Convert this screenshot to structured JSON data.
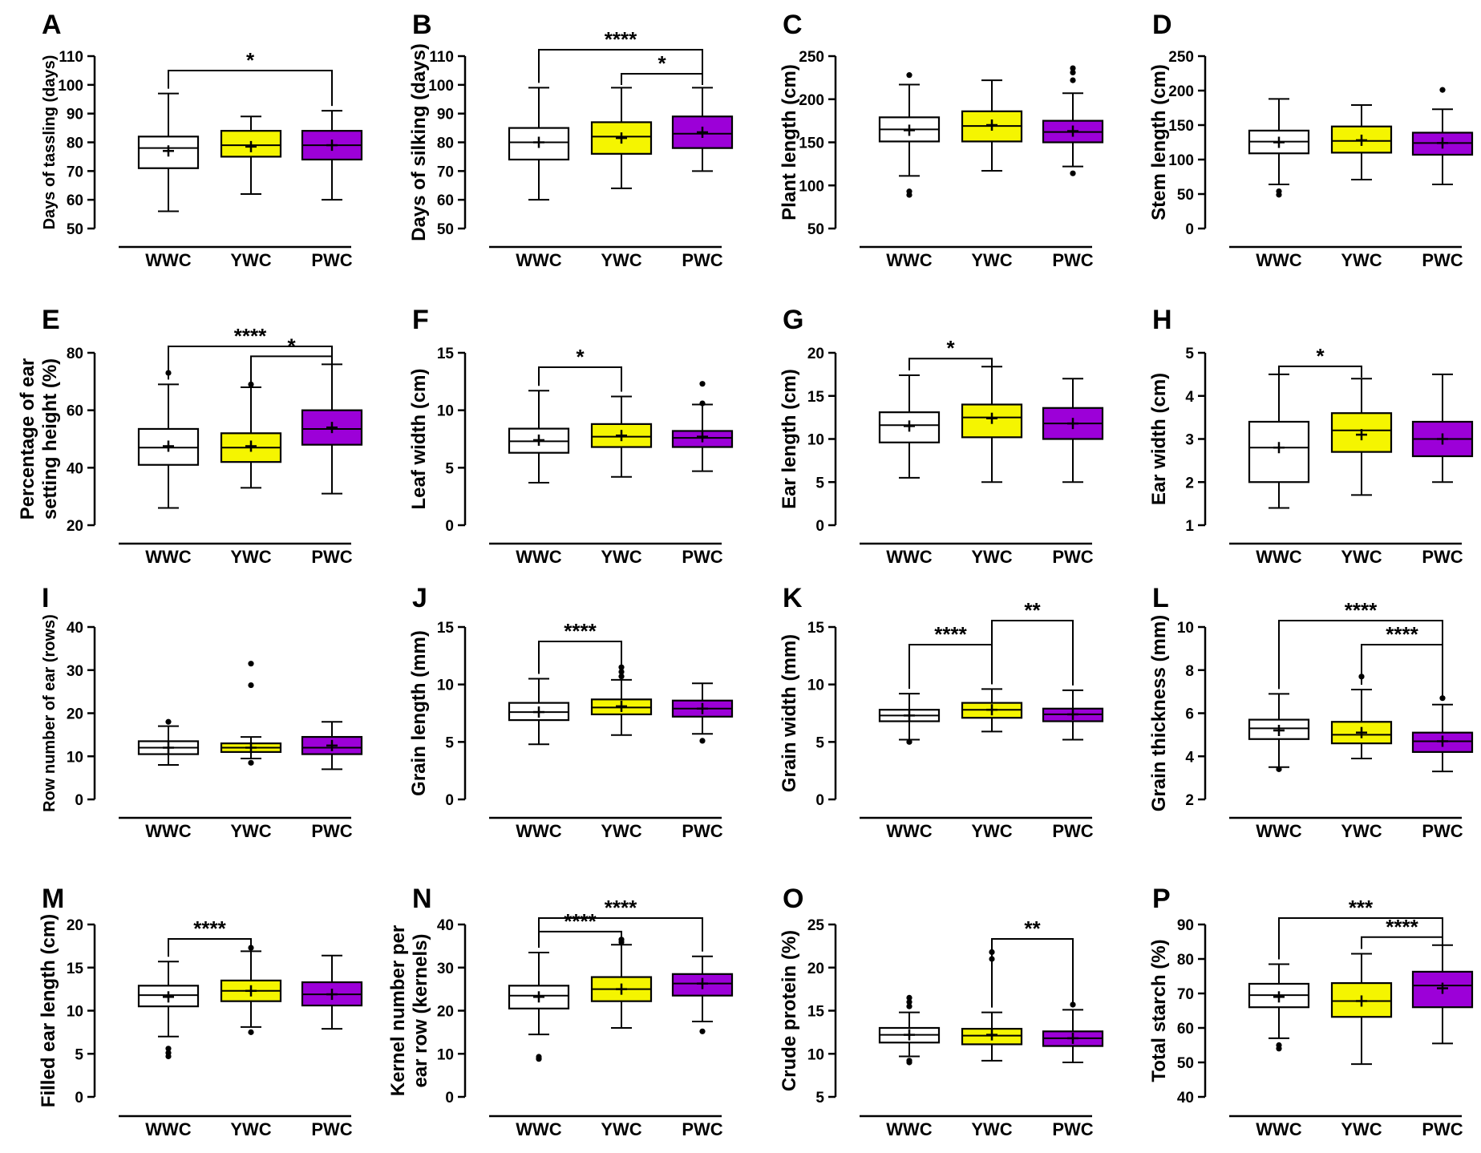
{
  "figure": {
    "colors": {
      "WWC": "#ffffff",
      "YWC": "#f5f500",
      "PWC": "#9c00d8"
    },
    "categories": [
      "WWC",
      "YWC",
      "PWC"
    ]
  },
  "chart_data": [
    {
      "type": "box",
      "panel": "A",
      "ylabel": [
        "Days of tassling (days)"
      ],
      "ylim": [
        50,
        110
      ],
      "ticks": [
        50,
        60,
        70,
        80,
        90,
        100,
        110
      ],
      "categories": [
        "WWC",
        "YWC",
        "PWC"
      ],
      "boxes": [
        {
          "min": 56,
          "q1": 71,
          "median": 78,
          "q3": 82,
          "max": 97,
          "mean": 77,
          "outliers": []
        },
        {
          "min": 62,
          "q1": 75,
          "median": 79,
          "q3": 84,
          "max": 89,
          "mean": 78.5,
          "outliers": []
        },
        {
          "min": 60,
          "q1": 74,
          "median": 79,
          "q3": 84,
          "max": 91,
          "mean": 79,
          "outliers": []
        }
      ],
      "significance": [
        {
          "from": 0,
          "to": 2,
          "label": "*"
        }
      ]
    },
    {
      "type": "box",
      "panel": "B",
      "ylabel": [
        "Days of silking (days)"
      ],
      "ylim": [
        50,
        110
      ],
      "ticks": [
        50,
        60,
        70,
        80,
        90,
        100,
        110
      ],
      "categories": [
        "WWC",
        "YWC",
        "PWC"
      ],
      "boxes": [
        {
          "min": 60,
          "q1": 74,
          "median": 80,
          "q3": 85,
          "max": 99,
          "mean": 80,
          "outliers": []
        },
        {
          "min": 64,
          "q1": 76,
          "median": 82,
          "q3": 87,
          "max": 99,
          "mean": 81.5,
          "outliers": []
        },
        {
          "min": 70,
          "q1": 78,
          "median": 83,
          "q3": 89,
          "max": 99,
          "mean": 83.5,
          "outliers": []
        }
      ],
      "significance": [
        {
          "from": 0,
          "to": 2,
          "label": "****"
        },
        {
          "from": 1,
          "to": 2,
          "label": "*"
        }
      ]
    },
    {
      "type": "box",
      "panel": "C",
      "ylabel": [
        "Plant length (cm)"
      ],
      "ylim": [
        50,
        250
      ],
      "ticks": [
        50,
        100,
        150,
        200,
        250
      ],
      "categories": [
        "WWC",
        "YWC",
        "PWC"
      ],
      "boxes": [
        {
          "min": 111,
          "q1": 151,
          "median": 165,
          "q3": 179,
          "max": 217,
          "mean": 164,
          "outliers": [
            228,
            93,
            89
          ]
        },
        {
          "min": 117,
          "q1": 151,
          "median": 169,
          "q3": 186,
          "max": 222,
          "mean": 170,
          "outliers": []
        },
        {
          "min": 122,
          "q1": 150,
          "median": 162,
          "q3": 175,
          "max": 207,
          "mean": 163,
          "outliers": [
            236,
            231,
            222,
            114
          ]
        }
      ],
      "significance": []
    },
    {
      "type": "box",
      "panel": "D",
      "ylabel": [
        "Stem length (cm)"
      ],
      "ylim": [
        0,
        250
      ],
      "ticks": [
        0,
        50,
        100,
        150,
        200,
        250
      ],
      "categories": [
        "WWC",
        "YWC",
        "PWC"
      ],
      "boxes": [
        {
          "min": 64,
          "q1": 109,
          "median": 126,
          "q3": 142,
          "max": 188,
          "mean": 125,
          "outliers": [
            54,
            49
          ]
        },
        {
          "min": 71,
          "q1": 110,
          "median": 127,
          "q3": 148,
          "max": 179,
          "mean": 128,
          "outliers": []
        },
        {
          "min": 64,
          "q1": 107,
          "median": 124,
          "q3": 139,
          "max": 173,
          "mean": 124,
          "outliers": [
            201
          ]
        }
      ],
      "significance": []
    },
    {
      "type": "box",
      "panel": "E",
      "ylabel": [
        "Percentage of ear",
        "setting height (%)"
      ],
      "ylim": [
        20,
        80
      ],
      "ticks": [
        20,
        40,
        60,
        80
      ],
      "categories": [
        "WWC",
        "YWC",
        "PWC"
      ],
      "boxes": [
        {
          "min": 26,
          "q1": 41,
          "median": 47,
          "q3": 53.5,
          "max": 69,
          "mean": 47.5,
          "outliers": [
            73
          ]
        },
        {
          "min": 33,
          "q1": 42,
          "median": 47,
          "q3": 52,
          "max": 68,
          "mean": 47.5,
          "outliers": [
            69
          ]
        },
        {
          "min": 31,
          "q1": 48,
          "median": 53.5,
          "q3": 60,
          "max": 76,
          "mean": 54,
          "outliers": []
        }
      ],
      "significance": [
        {
          "from": 0,
          "to": 2,
          "label": "****"
        },
        {
          "from": 1,
          "to": 2,
          "label": "*"
        }
      ]
    },
    {
      "type": "box",
      "panel": "F",
      "ylabel": [
        "Leaf width (cm)"
      ],
      "ylim": [
        0,
        15
      ],
      "ticks": [
        0,
        5,
        10,
        15
      ],
      "categories": [
        "WWC",
        "YWC",
        "PWC"
      ],
      "boxes": [
        {
          "min": 3.7,
          "q1": 6.3,
          "median": 7.3,
          "q3": 8.4,
          "max": 11.7,
          "mean": 7.4,
          "outliers": []
        },
        {
          "min": 4.2,
          "q1": 6.8,
          "median": 7.7,
          "q3": 8.8,
          "max": 11.2,
          "mean": 7.8,
          "outliers": []
        },
        {
          "min": 4.7,
          "q1": 6.8,
          "median": 7.6,
          "q3": 8.2,
          "max": 10.5,
          "mean": 7.7,
          "outliers": [
            12.3,
            10.6
          ]
        }
      ],
      "significance": [
        {
          "from": 0,
          "to": 1,
          "label": "*"
        }
      ]
    },
    {
      "type": "box",
      "panel": "G",
      "ylabel": [
        "Ear length (cm)"
      ],
      "ylim": [
        0,
        20
      ],
      "ticks": [
        0,
        5,
        10,
        15,
        20
      ],
      "categories": [
        "WWC",
        "YWC",
        "PWC"
      ],
      "boxes": [
        {
          "min": 5.5,
          "q1": 9.6,
          "median": 11.6,
          "q3": 13.1,
          "max": 17.4,
          "mean": 11.5,
          "outliers": []
        },
        {
          "min": 5,
          "q1": 10.2,
          "median": 12.5,
          "q3": 14,
          "max": 18.4,
          "mean": 12.4,
          "outliers": []
        },
        {
          "min": 5,
          "q1": 10,
          "median": 11.8,
          "q3": 13.6,
          "max": 17,
          "mean": 11.8,
          "outliers": []
        }
      ],
      "significance": [
        {
          "from": 0,
          "to": 1,
          "label": "*"
        }
      ]
    },
    {
      "type": "box",
      "panel": "H",
      "ylabel": [
        "Ear width (cm)"
      ],
      "ylim": [
        1,
        5
      ],
      "ticks": [
        1,
        2,
        3,
        4,
        5
      ],
      "categories": [
        "WWC",
        "YWC",
        "PWC"
      ],
      "boxes": [
        {
          "min": 1.4,
          "q1": 2,
          "median": 2.8,
          "q3": 3.4,
          "max": 4.5,
          "mean": 2.8,
          "outliers": []
        },
        {
          "min": 1.7,
          "q1": 2.7,
          "median": 3.2,
          "q3": 3.6,
          "max": 4.4,
          "mean": 3.1,
          "outliers": []
        },
        {
          "min": 2,
          "q1": 2.6,
          "median": 3,
          "q3": 3.4,
          "max": 4.5,
          "mean": 3,
          "outliers": []
        }
      ],
      "significance": [
        {
          "from": 0,
          "to": 1,
          "label": "*"
        }
      ]
    },
    {
      "type": "box",
      "panel": "I",
      "ylabel": [
        "Row number of ear (rows)"
      ],
      "ylim": [
        0,
        40
      ],
      "ticks": [
        0,
        10,
        20,
        30,
        40
      ],
      "categories": [
        "WWC",
        "YWC",
        "PWC"
      ],
      "boxes": [
        {
          "min": 8,
          "q1": 10.5,
          "median": 12,
          "q3": 13.5,
          "max": 17,
          "mean": 12,
          "outliers": [
            18
          ]
        },
        {
          "min": 9.5,
          "q1": 11,
          "median": 12,
          "q3": 13,
          "max": 14.5,
          "mean": 12,
          "outliers": [
            31.5,
            26.5,
            8.5
          ]
        },
        {
          "min": 7,
          "q1": 10.5,
          "median": 12,
          "q3": 14.5,
          "max": 18,
          "mean": 12.5,
          "outliers": []
        }
      ],
      "significance": []
    },
    {
      "type": "box",
      "panel": "J",
      "ylabel": [
        "Grain length (mm)"
      ],
      "ylim": [
        0,
        15
      ],
      "ticks": [
        0,
        5,
        10,
        15
      ],
      "categories": [
        "WWC",
        "YWC",
        "PWC"
      ],
      "boxes": [
        {
          "min": 4.8,
          "q1": 6.9,
          "median": 7.6,
          "q3": 8.4,
          "max": 10.5,
          "mean": 7.6,
          "outliers": []
        },
        {
          "min": 5.6,
          "q1": 7.4,
          "median": 8,
          "q3": 8.7,
          "max": 10.4,
          "mean": 8.1,
          "outliers": [
            11.5,
            11.1,
            10.7
          ]
        },
        {
          "min": 5.7,
          "q1": 7.2,
          "median": 7.9,
          "q3": 8.6,
          "max": 10.1,
          "mean": 7.9,
          "outliers": [
            5.1
          ]
        }
      ],
      "significance": [
        {
          "from": 0,
          "to": 1,
          "label": "****"
        }
      ]
    },
    {
      "type": "box",
      "panel": "K",
      "ylabel": [
        "Grain width (mm)"
      ],
      "ylim": [
        0,
        15
      ],
      "ticks": [
        0,
        5,
        10,
        15
      ],
      "categories": [
        "WWC",
        "YWC",
        "PWC"
      ],
      "boxes": [
        {
          "min": 5.2,
          "q1": 6.8,
          "median": 7.3,
          "q3": 7.8,
          "max": 9.2,
          "mean": 7.3,
          "outliers": [
            5
          ]
        },
        {
          "min": 5.9,
          "q1": 7.1,
          "median": 7.8,
          "q3": 8.4,
          "max": 9.6,
          "mean": 7.8,
          "outliers": []
        },
        {
          "min": 5.2,
          "q1": 6.8,
          "median": 7.4,
          "q3": 7.9,
          "max": 9.5,
          "mean": 7.4,
          "outliers": []
        }
      ],
      "significance": [
        {
          "from": 0,
          "to": 1,
          "label": "****"
        },
        {
          "from": 1,
          "to": 2,
          "label": "**"
        }
      ]
    },
    {
      "type": "box",
      "panel": "L",
      "ylabel": [
        "Grain thickness (mm)"
      ],
      "ylim": [
        2,
        10
      ],
      "ticks": [
        2,
        4,
        6,
        8,
        10
      ],
      "categories": [
        "WWC",
        "YWC",
        "PWC"
      ],
      "boxes": [
        {
          "min": 3.5,
          "q1": 4.8,
          "median": 5.3,
          "q3": 5.7,
          "max": 6.9,
          "mean": 5.2,
          "outliers": [
            3.4
          ]
        },
        {
          "min": 3.9,
          "q1": 4.6,
          "median": 5,
          "q3": 5.6,
          "max": 7.1,
          "mean": 5.1,
          "outliers": [
            7.7
          ]
        },
        {
          "min": 3.3,
          "q1": 4.2,
          "median": 4.7,
          "q3": 5.1,
          "max": 6.4,
          "mean": 4.7,
          "outliers": [
            6.7
          ]
        }
      ],
      "significance": [
        {
          "from": 0,
          "to": 2,
          "label": "****"
        },
        {
          "from": 1,
          "to": 2,
          "label": "****"
        }
      ]
    },
    {
      "type": "box",
      "panel": "M",
      "ylabel": [
        "Filled ear length (cm)"
      ],
      "ylim": [
        0,
        20
      ],
      "ticks": [
        0,
        5,
        10,
        15,
        20
      ],
      "categories": [
        "WWC",
        "YWC",
        "PWC"
      ],
      "boxes": [
        {
          "min": 7,
          "q1": 10.5,
          "median": 11.8,
          "q3": 12.9,
          "max": 15.7,
          "mean": 11.6,
          "outliers": [
            5.6,
            5.1,
            4.7
          ]
        },
        {
          "min": 8.1,
          "q1": 11.1,
          "median": 12.3,
          "q3": 13.5,
          "max": 16.9,
          "mean": 12.3,
          "outliers": [
            17.3,
            7.5
          ]
        },
        {
          "min": 7.9,
          "q1": 10.6,
          "median": 11.9,
          "q3": 13.3,
          "max": 16.4,
          "mean": 11.9,
          "outliers": []
        }
      ],
      "significance": [
        {
          "from": 0,
          "to": 1,
          "label": "****"
        }
      ]
    },
    {
      "type": "box",
      "panel": "N",
      "ylabel": [
        "Kernel number per",
        "ear row (kernels)"
      ],
      "ylim": [
        0,
        40
      ],
      "ticks": [
        0,
        10,
        20,
        30,
        40
      ],
      "categories": [
        "WWC",
        "YWC",
        "PWC"
      ],
      "boxes": [
        {
          "min": 14.5,
          "q1": 20.5,
          "median": 23.5,
          "q3": 25.8,
          "max": 33.5,
          "mean": 23.2,
          "outliers": [
            9.3,
            8.8
          ]
        },
        {
          "min": 16,
          "q1": 22.2,
          "median": 25,
          "q3": 27.8,
          "max": 35.3,
          "mean": 25,
          "outliers": [
            36.5,
            35.9
          ]
        },
        {
          "min": 17.5,
          "q1": 23.5,
          "median": 26.3,
          "q3": 28.5,
          "max": 32.6,
          "mean": 26.3,
          "outliers": [
            15.2
          ]
        }
      ],
      "significance": [
        {
          "from": 0,
          "to": 1,
          "label": "****"
        },
        {
          "from": 0,
          "to": 2,
          "label": "****"
        }
      ]
    },
    {
      "type": "box",
      "panel": "O",
      "ylabel": [
        "Crude protein (%)"
      ],
      "ylim": [
        5,
        25
      ],
      "ticks": [
        5,
        10,
        15,
        20,
        25
      ],
      "categories": [
        "WWC",
        "YWC",
        "PWC"
      ],
      "boxes": [
        {
          "min": 9.7,
          "q1": 11.3,
          "median": 12.2,
          "q3": 13,
          "max": 14.8,
          "mean": 12.2,
          "outliers": [
            16.5,
            16,
            15.5,
            9.2,
            9
          ]
        },
        {
          "min": 9.2,
          "q1": 11.1,
          "median": 12.1,
          "q3": 12.9,
          "max": 14.8,
          "mean": 12.2,
          "outliers": [
            21.8,
            21
          ]
        },
        {
          "min": 9,
          "q1": 10.9,
          "median": 11.8,
          "q3": 12.6,
          "max": 15.1,
          "mean": 11.8,
          "outliers": [
            15.7
          ]
        }
      ],
      "significance": [
        {
          "from": 1,
          "to": 2,
          "label": "**"
        }
      ]
    },
    {
      "type": "box",
      "panel": "P",
      "ylabel": [
        "Total starch (%)"
      ],
      "ylim": [
        40,
        90
      ],
      "ticks": [
        40,
        50,
        60,
        70,
        80,
        90
      ],
      "categories": [
        "WWC",
        "YWC",
        "PWC"
      ],
      "boxes": [
        {
          "min": 57,
          "q1": 66,
          "median": 69.5,
          "q3": 72.8,
          "max": 78.5,
          "mean": 69,
          "outliers": [
            55,
            54
          ]
        },
        {
          "min": 49.5,
          "q1": 63.2,
          "median": 67.8,
          "q3": 73,
          "max": 81.5,
          "mean": 67.8,
          "outliers": []
        },
        {
          "min": 55.5,
          "q1": 66,
          "median": 72.3,
          "q3": 76.3,
          "max": 84,
          "mean": 71.5,
          "outliers": []
        }
      ],
      "significance": [
        {
          "from": 0,
          "to": 2,
          "label": "***"
        },
        {
          "from": 1,
          "to": 2,
          "label": "****"
        }
      ]
    }
  ]
}
